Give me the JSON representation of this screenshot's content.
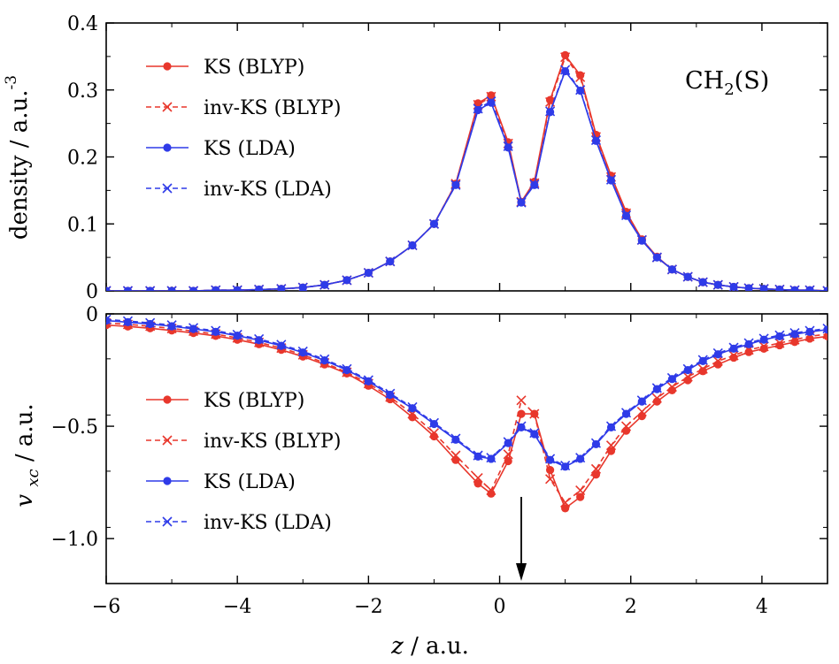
{
  "chart_data": [
    {
      "type": "line",
      "ylabel": "density / a.u.",
      "ylabel_exponent": "-3",
      "annotation": {
        "main": "CH",
        "sub": "2",
        "tail": "(S)"
      },
      "xlim": [
        -6,
        5
      ],
      "ylim": [
        0,
        0.4
      ],
      "yticks": [
        0,
        0.1,
        0.2,
        0.3,
        0.4
      ],
      "ytick_labels": [
        "0",
        "0.1",
        "0.2",
        "0.3",
        "0.4"
      ],
      "legend_position": "top-left",
      "series": [
        {
          "name": "KS (BLYP)",
          "color": "#e8372c",
          "dash": "solid",
          "marker": "dot",
          "x": [
            -6,
            -5.67,
            -5.33,
            -5,
            -4.67,
            -4.33,
            -4,
            -3.67,
            -3.33,
            -3,
            -2.67,
            -2.33,
            -2,
            -1.67,
            -1.33,
            -1,
            -0.67,
            -0.33,
            -0.13,
            0.13,
            0.33,
            0.53,
            0.77,
            1,
            1.23,
            1.47,
            1.7,
            1.93,
            2.17,
            2.4,
            2.63,
            2.87,
            3.1,
            3.33,
            3.57,
            3.8,
            4.03,
            4.27,
            4.5,
            4.73,
            5
          ],
          "values": [
            0.0,
            0.0,
            0.0,
            0.0,
            0.0,
            0.001,
            0.001,
            0.002,
            0.003,
            0.005,
            0.009,
            0.016,
            0.027,
            0.044,
            0.068,
            0.1,
            0.16,
            0.28,
            0.292,
            0.222,
            0.133,
            0.163,
            0.285,
            0.352,
            0.322,
            0.233,
            0.172,
            0.118,
            0.077,
            0.051,
            0.032,
            0.021,
            0.013,
            0.009,
            0.006,
            0.004,
            0.003,
            0.002,
            0.001,
            0.001,
            0.0
          ]
        },
        {
          "name": "inv-KS (BLYP)",
          "color": "#e8372c",
          "dash": "dashed",
          "marker": "cross",
          "x": [
            -6,
            -5.67,
            -5.33,
            -5,
            -4.67,
            -4.33,
            -4,
            -3.67,
            -3.33,
            -3,
            -2.67,
            -2.33,
            -2,
            -1.67,
            -1.33,
            -1,
            -0.67,
            -0.33,
            -0.13,
            0.13,
            0.33,
            0.53,
            0.77,
            1,
            1.23,
            1.47,
            1.7,
            1.93,
            2.17,
            2.4,
            2.63,
            2.87,
            3.1,
            3.33,
            3.57,
            3.8,
            4.03,
            4.27,
            4.5,
            4.73,
            5
          ],
          "values": [
            0.0,
            0.0,
            0.0,
            0.0,
            0.0,
            0.001,
            0.001,
            0.002,
            0.003,
            0.005,
            0.009,
            0.016,
            0.027,
            0.044,
            0.068,
            0.1,
            0.16,
            0.278,
            0.29,
            0.22,
            0.133,
            0.161,
            0.282,
            0.349,
            0.319,
            0.23,
            0.17,
            0.116,
            0.076,
            0.05,
            0.032,
            0.021,
            0.013,
            0.009,
            0.006,
            0.004,
            0.003,
            0.002,
            0.001,
            0.001,
            0.0
          ]
        },
        {
          "name": "KS (LDA)",
          "color": "#2f3be8",
          "dash": "solid",
          "marker": "dot",
          "x": [
            -6,
            -5.67,
            -5.33,
            -5,
            -4.67,
            -4.33,
            -4,
            -3.67,
            -3.33,
            -3,
            -2.67,
            -2.33,
            -2,
            -1.67,
            -1.33,
            -1,
            -0.67,
            -0.33,
            -0.13,
            0.13,
            0.33,
            0.53,
            0.77,
            1,
            1.23,
            1.47,
            1.7,
            1.93,
            2.17,
            2.4,
            2.63,
            2.87,
            3.1,
            3.33,
            3.57,
            3.8,
            4.03,
            4.27,
            4.5,
            4.73,
            5
          ],
          "values": [
            0.0,
            0.0,
            0.0,
            0.0,
            0.0,
            0.001,
            0.001,
            0.002,
            0.003,
            0.005,
            0.009,
            0.016,
            0.027,
            0.044,
            0.068,
            0.1,
            0.158,
            0.27,
            0.281,
            0.214,
            0.132,
            0.158,
            0.267,
            0.328,
            0.299,
            0.224,
            0.165,
            0.112,
            0.075,
            0.05,
            0.032,
            0.021,
            0.013,
            0.009,
            0.006,
            0.004,
            0.003,
            0.002,
            0.001,
            0.001,
            0.0
          ]
        },
        {
          "name": "inv-KS (LDA)",
          "color": "#2f3be8",
          "dash": "dashed",
          "marker": "cross",
          "x": [
            -6,
            -5.67,
            -5.33,
            -5,
            -4.67,
            -4.33,
            -4,
            -3.67,
            -3.33,
            -3,
            -2.67,
            -2.33,
            -2,
            -1.67,
            -1.33,
            -1,
            -0.67,
            -0.33,
            -0.13,
            0.13,
            0.33,
            0.53,
            0.77,
            1,
            1.23,
            1.47,
            1.7,
            1.93,
            2.17,
            2.4,
            2.63,
            2.87,
            3.1,
            3.33,
            3.57,
            3.8,
            4.03,
            4.27,
            4.5,
            4.73,
            5
          ],
          "values": [
            0.0,
            0.0,
            0.0,
            0.0,
            0.0,
            0.001,
            0.001,
            0.002,
            0.003,
            0.005,
            0.009,
            0.016,
            0.027,
            0.044,
            0.068,
            0.1,
            0.158,
            0.272,
            0.283,
            0.216,
            0.132,
            0.159,
            0.268,
            0.33,
            0.3,
            0.225,
            0.166,
            0.113,
            0.076,
            0.05,
            0.032,
            0.021,
            0.013,
            0.009,
            0.006,
            0.004,
            0.003,
            0.002,
            0.001,
            0.001,
            0.0
          ]
        }
      ]
    },
    {
      "type": "line",
      "xlabel": "z / a.u.",
      "ylabel": "v / a.u.",
      "ylabel_subscript": "xc",
      "xlim": [
        -6,
        5
      ],
      "ylim": [
        -1.2,
        0
      ],
      "xticks": [
        -6,
        -4,
        -2,
        0,
        2,
        4
      ],
      "xtick_labels": [
        "−6",
        "−4",
        "−2",
        "0",
        "2",
        "4"
      ],
      "yticks": [
        0,
        -0.5,
        -1.0
      ],
      "ytick_labels": [
        "0",
        "−0.5",
        "−1.0"
      ],
      "legend_position": "bottom-left",
      "arrow_x": 0.33,
      "series": [
        {
          "name": "KS (BLYP)",
          "color": "#e8372c",
          "dash": "solid",
          "marker": "dot",
          "x": [
            -6,
            -5.67,
            -5.33,
            -5,
            -4.67,
            -4.33,
            -4,
            -3.67,
            -3.33,
            -3,
            -2.67,
            -2.33,
            -2,
            -1.67,
            -1.33,
            -1,
            -0.67,
            -0.33,
            -0.13,
            0.13,
            0.33,
            0.53,
            0.77,
            1,
            1.23,
            1.47,
            1.7,
            1.93,
            2.17,
            2.4,
            2.63,
            2.87,
            3.1,
            3.33,
            3.57,
            3.8,
            4.03,
            4.27,
            4.5,
            4.73,
            5
          ],
          "values": [
            -0.05,
            -0.056,
            -0.064,
            -0.074,
            -0.085,
            -0.098,
            -0.115,
            -0.135,
            -0.16,
            -0.19,
            -0.225,
            -0.265,
            -0.32,
            -0.38,
            -0.46,
            -0.545,
            -0.65,
            -0.755,
            -0.8,
            -0.655,
            -0.445,
            -0.445,
            -0.695,
            -0.865,
            -0.815,
            -0.715,
            -0.61,
            -0.52,
            -0.455,
            -0.39,
            -0.34,
            -0.295,
            -0.255,
            -0.225,
            -0.195,
            -0.17,
            -0.155,
            -0.14,
            -0.125,
            -0.11,
            -0.1
          ]
        },
        {
          "name": "inv-KS (BLYP)",
          "color": "#e8372c",
          "dash": "dashed",
          "marker": "cross",
          "x": [
            -6,
            -5.67,
            -5.33,
            -5,
            -4.67,
            -4.33,
            -4,
            -3.67,
            -3.33,
            -3,
            -2.67,
            -2.33,
            -2,
            -1.67,
            -1.33,
            -1,
            -0.67,
            -0.33,
            -0.13,
            0.13,
            0.33,
            0.53,
            0.77,
            1,
            1.23,
            1.47,
            1.7,
            1.93,
            2.17,
            2.4,
            2.63,
            2.87,
            3.1,
            3.33,
            3.57,
            3.8,
            4.03,
            4.27,
            4.5,
            4.73,
            5
          ],
          "values": [
            -0.04,
            -0.047,
            -0.055,
            -0.065,
            -0.077,
            -0.09,
            -0.107,
            -0.127,
            -0.152,
            -0.182,
            -0.218,
            -0.26,
            -0.31,
            -0.37,
            -0.445,
            -0.53,
            -0.63,
            -0.73,
            -0.785,
            -0.625,
            -0.385,
            -0.445,
            -0.735,
            -0.84,
            -0.785,
            -0.69,
            -0.585,
            -0.5,
            -0.435,
            -0.375,
            -0.325,
            -0.28,
            -0.245,
            -0.21,
            -0.185,
            -0.16,
            -0.145,
            -0.13,
            -0.115,
            -0.1,
            -0.09
          ]
        },
        {
          "name": "KS (LDA)",
          "color": "#2f3be8",
          "dash": "solid",
          "marker": "dot",
          "x": [
            -6,
            -5.67,
            -5.33,
            -5,
            -4.67,
            -4.33,
            -4,
            -3.67,
            -3.33,
            -3,
            -2.67,
            -2.33,
            -2,
            -1.67,
            -1.33,
            -1,
            -0.67,
            -0.33,
            -0.13,
            0.13,
            0.33,
            0.53,
            0.77,
            1,
            1.23,
            1.47,
            1.7,
            1.93,
            2.17,
            2.4,
            2.63,
            2.87,
            3.1,
            3.33,
            3.57,
            3.8,
            4.03,
            4.27,
            4.5,
            4.73,
            5
          ],
          "values": [
            -0.03,
            -0.037,
            -0.045,
            -0.055,
            -0.067,
            -0.08,
            -0.097,
            -0.117,
            -0.142,
            -0.172,
            -0.207,
            -0.25,
            -0.3,
            -0.36,
            -0.42,
            -0.49,
            -0.56,
            -0.635,
            -0.645,
            -0.575,
            -0.505,
            -0.535,
            -0.65,
            -0.68,
            -0.645,
            -0.58,
            -0.505,
            -0.445,
            -0.39,
            -0.335,
            -0.29,
            -0.25,
            -0.21,
            -0.18,
            -0.155,
            -0.135,
            -0.115,
            -0.1,
            -0.09,
            -0.08,
            -0.07
          ]
        },
        {
          "name": "inv-KS (LDA)",
          "color": "#2f3be8",
          "dash": "dashed",
          "marker": "cross",
          "x": [
            -6,
            -5.67,
            -5.33,
            -5,
            -4.67,
            -4.33,
            -4,
            -3.67,
            -3.33,
            -3,
            -2.67,
            -2.33,
            -2,
            -1.67,
            -1.33,
            -1,
            -0.67,
            -0.33,
            -0.13,
            0.13,
            0.33,
            0.53,
            0.77,
            1,
            1.23,
            1.47,
            1.7,
            1.93,
            2.17,
            2.4,
            2.63,
            2.87,
            3.1,
            3.33,
            3.57,
            3.8,
            4.03,
            4.27,
            4.5,
            4.73,
            5
          ],
          "values": [
            -0.025,
            -0.032,
            -0.04,
            -0.05,
            -0.062,
            -0.075,
            -0.092,
            -0.112,
            -0.137,
            -0.167,
            -0.202,
            -0.245,
            -0.295,
            -0.355,
            -0.415,
            -0.485,
            -0.555,
            -0.63,
            -0.64,
            -0.57,
            -0.5,
            -0.53,
            -0.645,
            -0.675,
            -0.64,
            -0.575,
            -0.5,
            -0.44,
            -0.385,
            -0.33,
            -0.285,
            -0.245,
            -0.205,
            -0.175,
            -0.15,
            -0.13,
            -0.11,
            -0.095,
            -0.085,
            -0.075,
            -0.065
          ]
        }
      ]
    }
  ]
}
